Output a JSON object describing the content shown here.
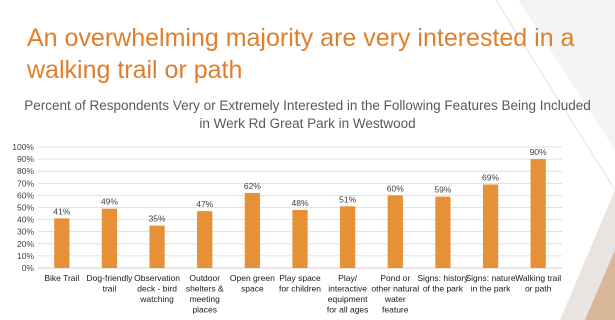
{
  "slide": {
    "title": "An overwhelming majority are very interested in a walking trail or path"
  },
  "chart_data": {
    "type": "bar",
    "title": "Percent of Respondents Very or Extremely Interested in the Following Features Being Included in Werk Rd Great Park in Westwood",
    "categories": [
      "Bike Trail",
      "Dog-friendly trail",
      "Observation deck - bird watching",
      "Outdoor shelters & meeting places",
      "Open green space",
      "Play space for children",
      "Play/ interactive equipment for all ages",
      "Pond or other natural water feature",
      "Signs: history of the park",
      "Signs: nature in the park",
      "Walking trail or path"
    ],
    "category_lines": [
      [
        "Bike Trail"
      ],
      [
        "Dog-friendly",
        "trail"
      ],
      [
        "Observation",
        "deck - bird",
        "watching"
      ],
      [
        "Outdoor",
        "shelters &",
        "meeting",
        "places"
      ],
      [
        "Open green",
        "space"
      ],
      [
        "Play space",
        "for children"
      ],
      [
        "Play/",
        "interactive",
        "equipment",
        "for all ages"
      ],
      [
        "Pond or",
        "other natural",
        "water",
        "feature"
      ],
      [
        "Signs: history",
        "of the park"
      ],
      [
        "Signs: nature",
        "in the park"
      ],
      [
        "Walking trail",
        "or path"
      ]
    ],
    "values": [
      41,
      49,
      35,
      47,
      62,
      48,
      51,
      60,
      59,
      69,
      90
    ],
    "data_labels": [
      "41%",
      "49%",
      "35%",
      "47%",
      "62%",
      "48%",
      "51%",
      "60%",
      "59%",
      "69%",
      "90%"
    ],
    "ylim": [
      0,
      100
    ],
    "yticks": [
      0,
      10,
      20,
      30,
      40,
      50,
      60,
      70,
      80,
      90,
      100
    ],
    "ytick_labels": [
      "0%",
      "10%",
      "20%",
      "30%",
      "40%",
      "50%",
      "60%",
      "70%",
      "80%",
      "90%",
      "100%"
    ],
    "grid": true,
    "legend": "none",
    "bar_color": "#E69138"
  },
  "colors": {
    "title": "#E07E2C",
    "bar": "#E69138",
    "grid": "#d9d9d9",
    "axis_text": "#404040"
  }
}
